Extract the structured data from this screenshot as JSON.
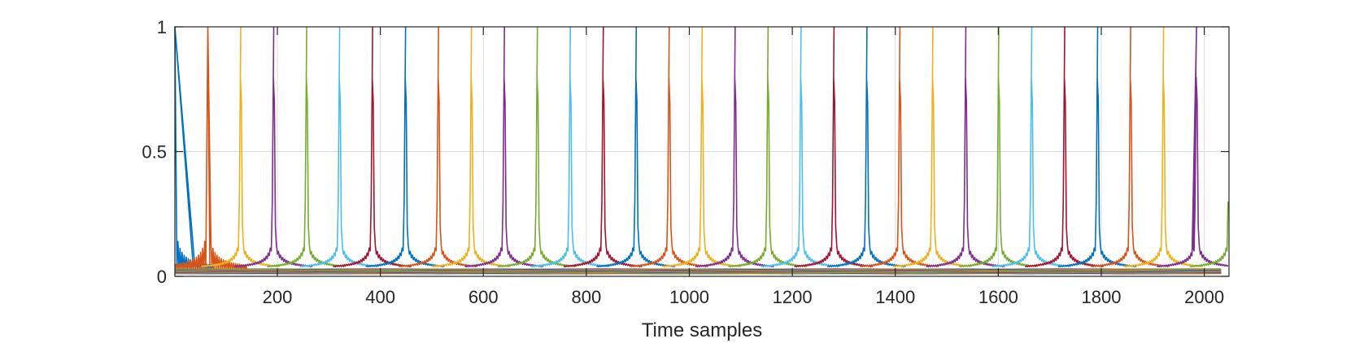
{
  "chart_data": {
    "type": "line",
    "title": "",
    "xlabel": "Time samples",
    "ylabel": "",
    "xlim": [
      1,
      2048
    ],
    "ylim": [
      0,
      1
    ],
    "xticks": [
      200,
      400,
      600,
      800,
      1000,
      1200,
      1400,
      1600,
      1800,
      2000
    ],
    "xtick_labels": [
      "200",
      "400",
      "600",
      "800",
      "1000",
      "1200",
      "1400",
      "1600",
      "1800",
      "2000"
    ],
    "yticks": [
      0,
      0.5,
      1
    ],
    "ytick_labels": [
      "0",
      "0.5",
      "1"
    ],
    "grid": true,
    "legend": "none",
    "colors": [
      "#0072BD",
      "#D95319",
      "#EDB120",
      "#7E2F8E",
      "#77AC30",
      "#4DBEEE",
      "#A2142F"
    ],
    "peak_spacing": 64,
    "peak_count": 33,
    "peak_height": 1,
    "sidelobe_height": 0.22,
    "floor_value": 0.01
  }
}
